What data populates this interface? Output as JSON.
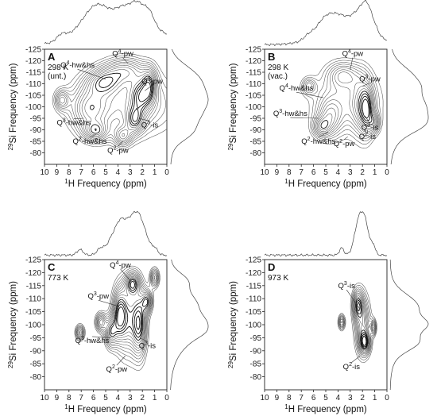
{
  "chart_data": [
    {
      "type": "contour",
      "panel_label": "A",
      "condition_lines": [
        "298 K",
        "(unt.)"
      ],
      "xlabel_prefix": "1",
      "xlabel_text": "H  Frequency (ppm)",
      "ylabel_prefix": "29",
      "ylabel_text": "Si  Frequency (ppm)",
      "xlim": [
        10,
        0
      ],
      "ylim": [
        -125,
        -75
      ],
      "xticks": [
        "10",
        "9",
        "8",
        "7",
        "6",
        "5",
        "4",
        "3",
        "2",
        "1",
        "0"
      ],
      "yticks": [
        "-125",
        "-120",
        "-115",
        "-110",
        "-105",
        "-100",
        "-95",
        "-90",
        "-85",
        "-80"
      ],
      "annotations": [
        {
          "text": "Q4-pw",
          "x": 3.2,
          "y": -119,
          "tx": 3.6,
          "ty": -122
        },
        {
          "text": "Q4-hw&hs",
          "x": 5.0,
          "y": -112,
          "tx": 7.3,
          "ty": -117
        },
        {
          "text": "Q3-pw",
          "x": 1.8,
          "y": -107,
          "tx": 1.2,
          "ty": -110
        },
        {
          "text": "Q3-hw&hs",
          "x": 6.8,
          "y": -95,
          "tx": 7.6,
          "ty": -92
        },
        {
          "text": "Q3-is",
          "x": 2.3,
          "y": -95,
          "tx": 1.4,
          "ty": -91
        },
        {
          "text": "Q2-hw&hs",
          "x": 5.8,
          "y": -88,
          "tx": 6.3,
          "ty": -84
        },
        {
          "text": "Q2-pw",
          "x": 3.6,
          "y": -85,
          "tx": 4.0,
          "ty": -80
        }
      ],
      "peaks": [
        {
          "x": 3.2,
          "y": -101,
          "sx": 2.8,
          "sy": 10
        },
        {
          "x": 6.4,
          "y": -99,
          "sx": 1.1,
          "sy": 7
        },
        {
          "x": 3.4,
          "y": -116,
          "sx": 1.2,
          "sy": 4
        },
        {
          "x": 5.2,
          "y": -111,
          "sx": 1.0,
          "sy": 4
        },
        {
          "x": 2.1,
          "y": -105,
          "sx": 0.6,
          "sy": 5
        },
        {
          "x": 2.6,
          "y": -94,
          "sx": 0.5,
          "sy": 4
        },
        {
          "x": 5.8,
          "y": -89,
          "sx": 0.7,
          "sy": 3
        },
        {
          "x": 3.6,
          "y": -87,
          "sx": 0.5,
          "sy": 3
        },
        {
          "x": 8.6,
          "y": -103,
          "sx": 0.4,
          "sy": 3
        },
        {
          "x": 1.4,
          "y": -110,
          "sx": 0.4,
          "sy": 5
        }
      ]
    },
    {
      "type": "contour",
      "panel_label": "B",
      "condition_lines": [
        "298 K",
        "(vac.)"
      ],
      "xlabel_prefix": "1",
      "xlabel_text": "H  Frequency (ppm)",
      "ylabel_prefix": "29",
      "ylabel_text": "Si  Frequency (ppm)",
      "xlim": [
        10,
        0
      ],
      "ylim": [
        -125,
        -75
      ],
      "xticks": [
        "10",
        "9",
        "8",
        "7",
        "6",
        "5",
        "4",
        "3",
        "2",
        "1",
        "0"
      ],
      "yticks": [
        "-125",
        "-120",
        "-115",
        "-110",
        "-105",
        "-100",
        "-95",
        "-90",
        "-85",
        "-80"
      ],
      "annotations": [
        {
          "text": "Q4-pw",
          "x": 3.0,
          "y": -116,
          "tx": 2.8,
          "ty": -122
        },
        {
          "text": "Q3-pw",
          "x": 2.0,
          "y": -109,
          "tx": 1.4,
          "ty": -111
        },
        {
          "text": "Q4-hw&hs",
          "x": 5.2,
          "y": -104,
          "tx": 7.4,
          "ty": -107
        },
        {
          "text": "Q3-hw&hs",
          "x": 5.6,
          "y": -95,
          "tx": 7.9,
          "ty": -96
        },
        {
          "text": "Q3-is",
          "x": 1.8,
          "y": -96,
          "tx": 1.4,
          "ty": -90
        },
        {
          "text": "Q2-is",
          "x": 1.6,
          "y": -90,
          "tx": 1.6,
          "ty": -86
        },
        {
          "text": "Q2-hw&hs",
          "x": 4.8,
          "y": -89,
          "tx": 5.6,
          "ty": -84
        },
        {
          "text": "Q2-pw",
          "x": 3.2,
          "y": -87,
          "tx": 3.5,
          "ty": -83
        }
      ],
      "peaks": [
        {
          "x": 3.3,
          "y": -102,
          "sx": 2.0,
          "sy": 10
        },
        {
          "x": 2.0,
          "y": -100,
          "sx": 0.6,
          "sy": 10
        },
        {
          "x": 4.7,
          "y": -95,
          "sx": 0.7,
          "sy": 6
        },
        {
          "x": 3.6,
          "y": -114,
          "sx": 0.9,
          "sy": 4
        },
        {
          "x": 6.4,
          "y": -109,
          "sx": 0.4,
          "sy": 2.5
        },
        {
          "x": 1.6,
          "y": -98,
          "sx": 0.35,
          "sy": 7
        },
        {
          "x": 5.4,
          "y": -91,
          "sx": 0.5,
          "sy": 3
        },
        {
          "x": 1.0,
          "y": -93,
          "sx": 0.3,
          "sy": 3
        }
      ]
    },
    {
      "type": "contour",
      "panel_label": "C",
      "condition_lines": [
        "773 K"
      ],
      "xlabel_prefix": "1",
      "xlabel_text": "H  Frequency (ppm)",
      "ylabel_prefix": "29",
      "ylabel_text": "Si  Frequency (ppm)",
      "xlim": [
        10,
        0
      ],
      "ylim": [
        -125,
        -75
      ],
      "xticks": [
        "10",
        "9",
        "8",
        "7",
        "6",
        "5",
        "4",
        "3",
        "2",
        "1",
        "0"
      ],
      "yticks": [
        "-125",
        "-120",
        "-115",
        "-110",
        "-105",
        "-100",
        "-95",
        "-90",
        "-85",
        "-80"
      ],
      "annotations": [
        {
          "text": "Q4-pw",
          "x": 3.0,
          "y": -117,
          "tx": 3.8,
          "ty": -122
        },
        {
          "text": "Q3-pw",
          "x": 3.9,
          "y": -107,
          "tx": 5.6,
          "ty": -110
        },
        {
          "text": "Q3-hw&hs",
          "x": 4.6,
          "y": -95,
          "tx": 6.1,
          "ty": -93
        },
        {
          "text": "Q3-is",
          "x": 2.2,
          "y": -95,
          "tx": 1.6,
          "ty": -91
        },
        {
          "text": "Q2-pw",
          "x": 3.4,
          "y": -88,
          "tx": 4.1,
          "ty": -82
        }
      ],
      "peaks": [
        {
          "x": 3.1,
          "y": -102,
          "sx": 0.7,
          "sy": 10
        },
        {
          "x": 2.2,
          "y": -100,
          "sx": 0.4,
          "sy": 9
        },
        {
          "x": 3.9,
          "y": -104,
          "sx": 0.4,
          "sy": 7
        },
        {
          "x": 4.6,
          "y": -97,
          "sx": 0.35,
          "sy": 4
        },
        {
          "x": 2.8,
          "y": -116,
          "sx": 0.4,
          "sy": 3
        },
        {
          "x": 1.6,
          "y": -109,
          "sx": 0.3,
          "sy": 3
        },
        {
          "x": 5.4,
          "y": -101,
          "sx": 0.3,
          "sy": 2.5
        },
        {
          "x": 1.0,
          "y": -118,
          "sx": 0.25,
          "sy": 2.5
        },
        {
          "x": 7.1,
          "y": -97,
          "sx": 0.25,
          "sy": 2
        }
      ]
    },
    {
      "type": "contour",
      "panel_label": "D",
      "condition_lines": [
        "973 K"
      ],
      "xlabel_prefix": "1",
      "xlabel_text": "H  Frequency (ppm)",
      "ylabel_prefix": "29",
      "ylabel_text": "Si  Frequency (ppm)",
      "xlim": [
        10,
        0
      ],
      "ylim": [
        -125,
        -75
      ],
      "xticks": [
        "10",
        "9",
        "8",
        "7",
        "6",
        "5",
        "4",
        "3",
        "2",
        "1",
        "0"
      ],
      "yticks": [
        "-125",
        "-120",
        "-115",
        "-110",
        "-105",
        "-100",
        "-95",
        "-90",
        "-85",
        "-80"
      ],
      "annotations": [
        {
          "text": "Q3-is",
          "x": 2.2,
          "y": -106,
          "tx": 3.3,
          "ty": -114
        },
        {
          "text": "Q2-is",
          "x": 2.2,
          "y": -88,
          "tx": 2.9,
          "ty": -83
        }
      ],
      "peaks": [
        {
          "x": 2.0,
          "y": -100,
          "sx": 0.45,
          "sy": 8
        },
        {
          "x": 2.4,
          "y": -108,
          "sx": 0.3,
          "sy": 4
        },
        {
          "x": 1.8,
          "y": -93,
          "sx": 0.3,
          "sy": 3
        },
        {
          "x": 3.7,
          "y": -101,
          "sx": 0.18,
          "sy": 2
        },
        {
          "x": 1.1,
          "y": -99,
          "sx": 0.15,
          "sy": 2
        }
      ]
    }
  ]
}
